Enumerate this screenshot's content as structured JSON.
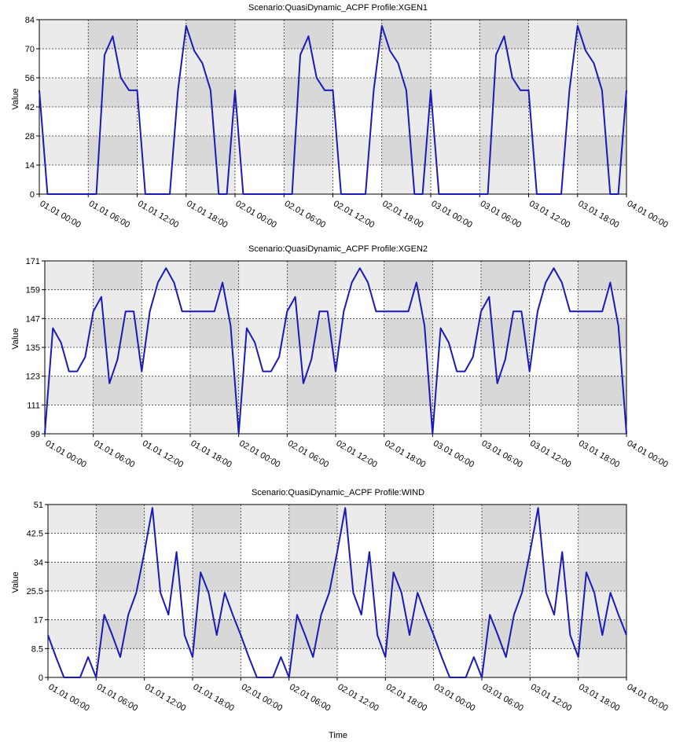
{
  "xlabel": "Time",
  "chart_data": [
    {
      "type": "line",
      "title": "Scenario:QuasiDynamic_ACPF Profile:XGEN1",
      "ylabel": "Value",
      "ylim": [
        0,
        84
      ],
      "yticks": [
        "0",
        "14",
        "28",
        "42",
        "56",
        "70",
        "84"
      ],
      "xlim": [
        0,
        72
      ],
      "xticks": [
        {
          "x": 0,
          "label": "01.01 00:00"
        },
        {
          "x": 6,
          "label": "01.01 06:00"
        },
        {
          "x": 12,
          "label": "01.01 12:00"
        },
        {
          "x": 18,
          "label": "01.01 18:00"
        },
        {
          "x": 24,
          "label": "02.01 00:00"
        },
        {
          "x": 30,
          "label": "02.01 06:00"
        },
        {
          "x": 36,
          "label": "02.01 12:00"
        },
        {
          "x": 42,
          "label": "02.01 18:00"
        },
        {
          "x": 48,
          "label": "03.01 00:00"
        },
        {
          "x": 54,
          "label": "03.01 06:00"
        },
        {
          "x": 60,
          "label": "03.01 12:00"
        },
        {
          "x": 66,
          "label": "03.01 18:00"
        },
        {
          "x": 72,
          "label": "04.01 00:00"
        }
      ],
      "grid": true,
      "series": [
        {
          "color": "#1a1ab8",
          "x": [
            0,
            1,
            2,
            3,
            4,
            5,
            6,
            7,
            8,
            9,
            10,
            11,
            12,
            13,
            14,
            15,
            16,
            17,
            18,
            19,
            20,
            21,
            22,
            23,
            24,
            25,
            26,
            27,
            28,
            29,
            30,
            31,
            32,
            33,
            34,
            35,
            36,
            37,
            38,
            39,
            40,
            41,
            42,
            43,
            44,
            45,
            46,
            47,
            48,
            49,
            50,
            51,
            52,
            53,
            54,
            55,
            56,
            57,
            58,
            59,
            60,
            61,
            62,
            63,
            64,
            65,
            66,
            67,
            68,
            69,
            70,
            71,
            72
          ],
          "y": [
            50,
            0,
            0,
            0,
            0,
            0,
            0,
            0,
            67,
            76,
            56,
            50,
            50,
            0,
            0,
            0,
            0,
            50,
            81,
            69,
            63,
            50,
            0,
            0,
            50,
            0,
            0,
            0,
            0,
            0,
            0,
            0,
            67,
            76,
            56,
            50,
            50,
            0,
            0,
            0,
            0,
            50,
            81,
            69,
            63,
            50,
            0,
            0,
            50,
            0,
            0,
            0,
            0,
            0,
            0,
            0,
            67,
            76,
            56,
            50,
            50,
            0,
            0,
            0,
            0,
            50,
            81,
            69,
            63,
            50,
            0,
            0,
            50
          ]
        }
      ]
    },
    {
      "type": "line",
      "title": "Scenario:QuasiDynamic_ACPF Profile:XGEN2",
      "ylabel": "Value",
      "ylim": [
        99,
        171
      ],
      "yticks": [
        "99",
        "111",
        "123",
        "135",
        "147",
        "159",
        "171"
      ],
      "xlim": [
        0,
        72
      ],
      "xticks": [
        {
          "x": 0,
          "label": "01.01 00:00"
        },
        {
          "x": 6,
          "label": "01.01 06:00"
        },
        {
          "x": 12,
          "label": "01.01 12:00"
        },
        {
          "x": 18,
          "label": "01.01 18:00"
        },
        {
          "x": 24,
          "label": "02.01 00:00"
        },
        {
          "x": 30,
          "label": "02.01 06:00"
        },
        {
          "x": 36,
          "label": "02.01 12:00"
        },
        {
          "x": 42,
          "label": "02.01 18:00"
        },
        {
          "x": 48,
          "label": "03.01 00:00"
        },
        {
          "x": 54,
          "label": "03.01 06:00"
        },
        {
          "x": 60,
          "label": "03.01 12:00"
        },
        {
          "x": 66,
          "label": "03.01 18:00"
        },
        {
          "x": 72,
          "label": "04.01 00:00"
        }
      ],
      "grid": true,
      "series": [
        {
          "color": "#1a1ab8",
          "x": [
            0,
            1,
            2,
            3,
            4,
            5,
            6,
            7,
            8,
            9,
            10,
            11,
            12,
            13,
            14,
            15,
            16,
            17,
            18,
            19,
            20,
            21,
            22,
            23,
            24,
            25,
            26,
            27,
            28,
            29,
            30,
            31,
            32,
            33,
            34,
            35,
            36,
            37,
            38,
            39,
            40,
            41,
            42,
            43,
            44,
            45,
            46,
            47,
            48,
            49,
            50,
            51,
            52,
            53,
            54,
            55,
            56,
            57,
            58,
            59,
            60,
            61,
            62,
            63,
            64,
            65,
            66,
            67,
            68,
            69,
            70,
            71,
            72
          ],
          "y": [
            99,
            143,
            137,
            125,
            125,
            131,
            150,
            156,
            120,
            130,
            150,
            150,
            125,
            150,
            162,
            168,
            162,
            150,
            150,
            150,
            150,
            150,
            162,
            144,
            99,
            143,
            137,
            125,
            125,
            131,
            150,
            156,
            120,
            130,
            150,
            150,
            125,
            150,
            162,
            168,
            162,
            150,
            150,
            150,
            150,
            150,
            162,
            144,
            99,
            143,
            137,
            125,
            125,
            131,
            150,
            156,
            120,
            130,
            150,
            150,
            125,
            150,
            162,
            168,
            162,
            150,
            150,
            150,
            150,
            150,
            162,
            144,
            99
          ]
        }
      ]
    },
    {
      "type": "line",
      "title": "Scenario:QuasiDynamic_ACPF Profile:WIND",
      "ylabel": "Value",
      "ylim": [
        0,
        51
      ],
      "yticks": [
        "0",
        "8.5",
        "17",
        "25.5",
        "34",
        "42.5",
        "51"
      ],
      "xlim": [
        0,
        72
      ],
      "xticks": [
        {
          "x": 0,
          "label": "01.01 00:00"
        },
        {
          "x": 6,
          "label": "01.01 06:00"
        },
        {
          "x": 12,
          "label": "01.01 12:00"
        },
        {
          "x": 18,
          "label": "01.01 18:00"
        },
        {
          "x": 24,
          "label": "02.01 00:00"
        },
        {
          "x": 30,
          "label": "02.01 06:00"
        },
        {
          "x": 36,
          "label": "02.01 12:00"
        },
        {
          "x": 42,
          "label": "02.01 18:00"
        },
        {
          "x": 48,
          "label": "03.01 00:00"
        },
        {
          "x": 54,
          "label": "03.01 06:00"
        },
        {
          "x": 60,
          "label": "03.01 12:00"
        },
        {
          "x": 66,
          "label": "03.01 18:00"
        },
        {
          "x": 72,
          "label": "04.01 00:00"
        }
      ],
      "grid": true,
      "series": [
        {
          "color": "#1a1ab8",
          "x": [
            0,
            1,
            2,
            3,
            4,
            5,
            6,
            7,
            8,
            9,
            10,
            11,
            12,
            13,
            14,
            15,
            16,
            17,
            18,
            19,
            20,
            21,
            22,
            23,
            24,
            25,
            26,
            27,
            28,
            29,
            30,
            31,
            32,
            33,
            34,
            35,
            36,
            37,
            38,
            39,
            40,
            41,
            42,
            43,
            44,
            45,
            46,
            47,
            48,
            49,
            50,
            51,
            52,
            53,
            54,
            55,
            56,
            57,
            58,
            59,
            60,
            61,
            62,
            63,
            64,
            65,
            66,
            67,
            68,
            69,
            70,
            71,
            72
          ],
          "y": [
            12.5,
            6,
            0,
            0,
            0,
            6,
            0,
            18.5,
            12.5,
            6,
            18.5,
            25,
            37,
            50,
            25,
            18.5,
            37,
            12.5,
            6,
            31,
            25,
            12.5,
            25,
            18.5,
            12.5,
            6,
            0,
            0,
            0,
            6,
            0,
            18.5,
            12.5,
            6,
            18.5,
            25,
            37,
            50,
            25,
            18.5,
            37,
            12.5,
            6,
            31,
            25,
            12.5,
            25,
            18.5,
            12.5,
            6,
            0,
            0,
            0,
            6,
            0,
            18.5,
            12.5,
            6,
            18.5,
            25,
            37,
            50,
            25,
            18.5,
            37,
            12.5,
            6,
            31,
            25,
            12.5,
            25,
            18.5,
            12.5
          ]
        }
      ]
    }
  ]
}
